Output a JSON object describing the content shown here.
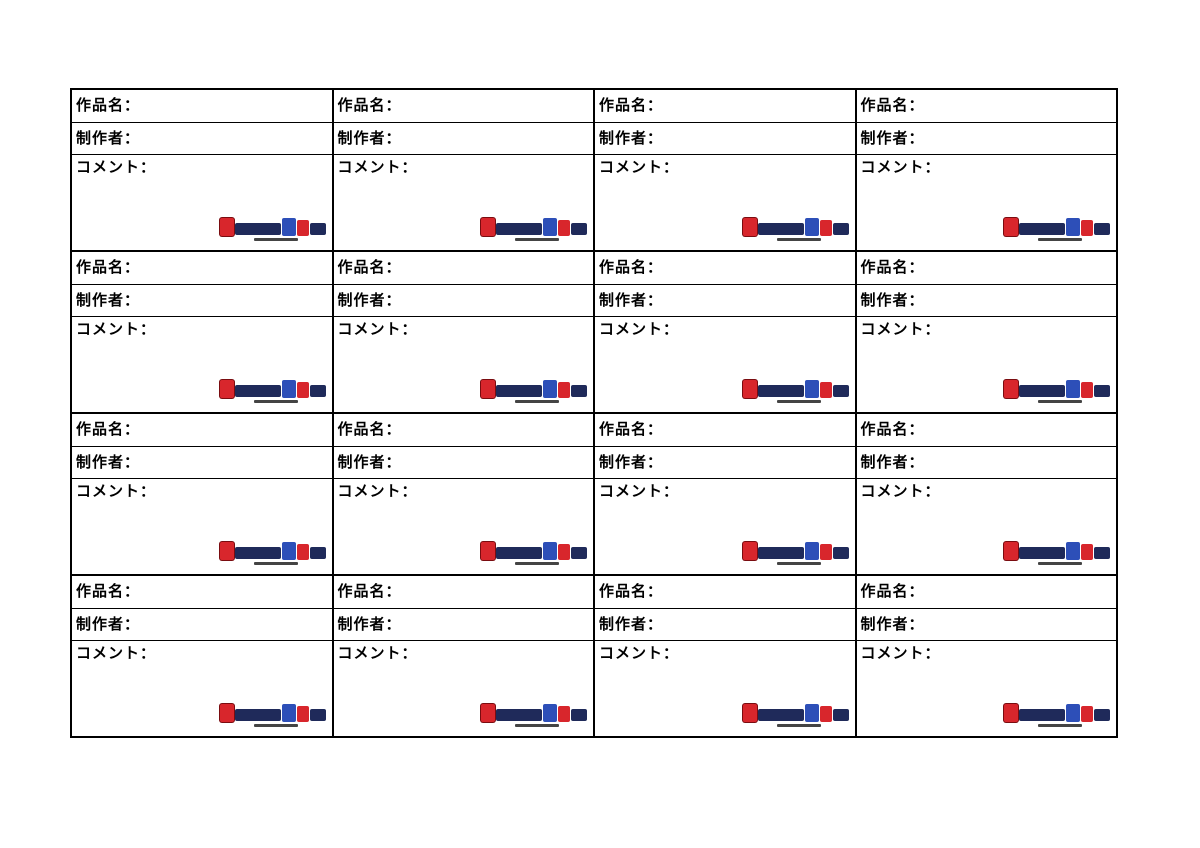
{
  "card": {
    "title_label": "作品名：",
    "author_label": "制作者：",
    "comment_label": "コメント："
  },
  "logo": {
    "name": "logo-icon",
    "colors": {
      "red": "#d8262c",
      "navy": "#1f2a5a",
      "blue": "#2d4fb8"
    }
  },
  "grid": {
    "rows": 4,
    "columns": 4
  }
}
